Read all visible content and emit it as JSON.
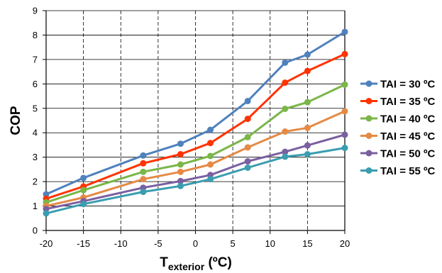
{
  "chart_data": {
    "type": "line",
    "title": "",
    "xlabel_main": "T",
    "xlabel_sub": "exterior",
    "xlabel_unit": " (ºC)",
    "ylabel": "COP",
    "xlim": [
      -20,
      20
    ],
    "ylim": [
      0,
      9
    ],
    "xticks": [
      -20,
      -15,
      -10,
      -5,
      0,
      5,
      10,
      15,
      20
    ],
    "yticks": [
      0,
      1,
      2,
      3,
      4,
      5,
      6,
      7,
      8,
      9
    ],
    "grid": true,
    "legend_position": "right",
    "x": [
      -20,
      -15,
      -7,
      -2,
      2,
      7,
      12,
      15,
      20
    ],
    "series": [
      {
        "name": "TAI = 30 ºC",
        "color": "#4f81bd",
        "values": [
          1.48,
          2.15,
          3.07,
          3.55,
          4.12,
          5.3,
          6.87,
          7.2,
          8.13
        ]
      },
      {
        "name": "TAI = 35 ºC",
        "color": "#ff3300",
        "values": [
          1.3,
          1.8,
          2.75,
          3.12,
          3.58,
          4.57,
          6.05,
          6.53,
          7.22
        ]
      },
      {
        "name": "TAI = 40 ºC",
        "color": "#7ab648",
        "values": [
          1.15,
          1.65,
          2.4,
          2.7,
          3.05,
          3.82,
          4.98,
          5.25,
          5.97
        ]
      },
      {
        "name": "TAI = 45 ºC",
        "color": "#e58a45",
        "values": [
          1.0,
          1.35,
          2.1,
          2.4,
          2.7,
          3.4,
          4.05,
          4.2,
          4.88
        ]
      },
      {
        "name": "TAI = 50 ºC",
        "color": "#7b5fa0",
        "values": [
          0.88,
          1.2,
          1.75,
          2.02,
          2.27,
          2.83,
          3.22,
          3.48,
          3.92
        ]
      },
      {
        "name": "TAI = 55 ºC",
        "color": "#3a9db0",
        "values": [
          0.7,
          1.08,
          1.58,
          1.82,
          2.1,
          2.57,
          3.02,
          3.12,
          3.38
        ]
      }
    ]
  }
}
